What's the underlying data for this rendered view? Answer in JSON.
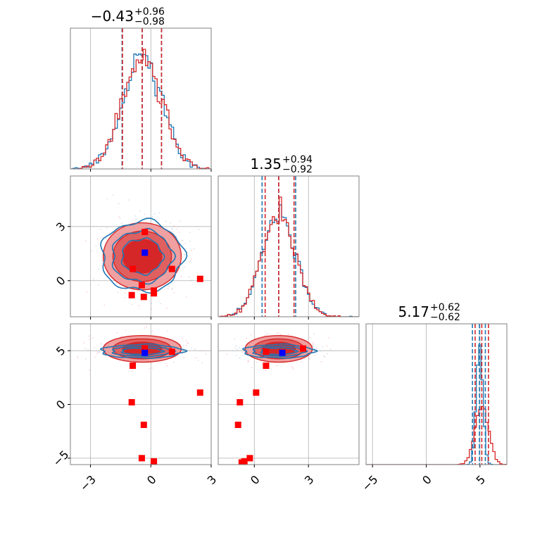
{
  "colors": {
    "blue": "#1f77b4",
    "red": "#d62728",
    "blue_marker": "#0000ff",
    "red_marker": "#ff0000",
    "grid": "#b0b0b0",
    "frame": "#808080",
    "fill_light": "#f0a0a0",
    "fill_mid": "#e06060",
    "fill_dark": "#d62728"
  },
  "titles": [
    {
      "value": "−0.43",
      "plus": "+0.96",
      "minus": "−0.98"
    },
    {
      "value": "1.35",
      "plus": "+0.94",
      "minus": "−0.92"
    },
    {
      "value": "5.17",
      "plus": "+0.62",
      "minus": "−0.62"
    }
  ],
  "chart_data": {
    "type": "corner",
    "parameters": 3,
    "ranges": [
      [
        -4.0,
        3.0
      ],
      [
        -2.0,
        5.8
      ],
      [
        -5.6,
        7.5
      ]
    ],
    "ticks": [
      {
        "values": [
          -3,
          0,
          3
        ],
        "labels": [
          "−3",
          "0",
          "3"
        ]
      },
      {
        "values": [
          0,
          3
        ],
        "labels": [
          "0",
          "3"
        ]
      },
      {
        "values": [
          -5,
          0,
          5
        ],
        "labels": [
          "−5",
          "0",
          "5"
        ]
      }
    ],
    "quantiles": {
      "blue": [
        [
          -1.43,
          -0.43,
          0.53
        ],
        [
          0.43,
          1.35,
          2.29
        ],
        [
          4.3,
          4.95,
          5.5
        ]
      ],
      "red": [
        [
          -1.41,
          -0.43,
          0.53
        ],
        [
          0.6,
          1.35,
          2.2
        ],
        [
          4.55,
          5.17,
          5.79
        ]
      ]
    },
    "series": [
      {
        "name": "",
        "color": "blue",
        "mean": [
          -0.43,
          1.35,
          4.95
        ],
        "sd": [
          0.97,
          0.93,
          0.3
        ]
      },
      {
        "name": "",
        "color": "red",
        "mean": [
          -0.43,
          1.35,
          5.17
        ],
        "sd": [
          0.97,
          0.93,
          0.62
        ]
      }
    ],
    "truth_blue": [
      -0.3,
      1.55,
      4.8
    ],
    "truth_red_points": [
      [
        -0.3,
        2.7,
        5.2
      ],
      [
        -0.9,
        0.65,
        3.6
      ],
      [
        1.05,
        0.65,
        4.9
      ],
      [
        2.45,
        0.1,
        1.1
      ],
      [
        -0.45,
        -0.25,
        -5.0
      ],
      [
        0.15,
        -0.55,
        -5.3
      ],
      [
        -0.95,
        -0.8,
        0.2
      ],
      [
        0.15,
        -0.7,
        -5.4
      ],
      [
        -0.35,
        -0.9,
        -1.9
      ]
    ]
  }
}
